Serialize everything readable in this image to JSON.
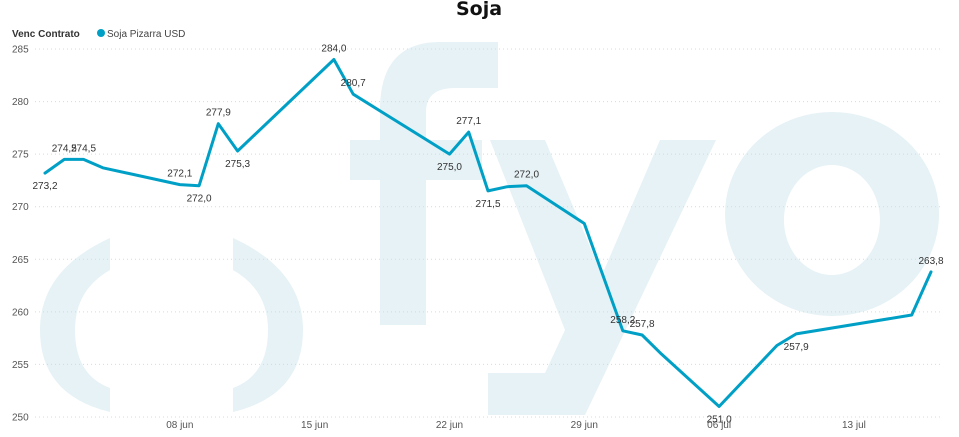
{
  "colors": {
    "series": "#00a0c6",
    "watermark": "#e6f2f6"
  },
  "legend": {
    "title": "Venc Contrato",
    "series_label": "Soja Pizarra USD"
  },
  "chart_data": {
    "type": "line",
    "title": "Soja",
    "xlabel": "",
    "ylabel": "",
    "ylim": [
      250,
      285
    ],
    "y_ticks": [
      250,
      255,
      260,
      265,
      270,
      275,
      280,
      285
    ],
    "x_range": [
      "2023-06-01",
      "2023-07-17"
    ],
    "x_ticks": [
      {
        "date": "2023-06-08",
        "label": "08 jun"
      },
      {
        "date": "2023-06-15",
        "label": "15 jun"
      },
      {
        "date": "2023-06-22",
        "label": "22 jun"
      },
      {
        "date": "2023-06-29",
        "label": "29 jun"
      },
      {
        "date": "2023-07-06",
        "label": "06 jul"
      },
      {
        "date": "2023-07-13",
        "label": "13 jul"
      }
    ],
    "grid": true,
    "legend_position": "top-left",
    "series": [
      {
        "name": "Soja Pizarra USD",
        "points": [
          {
            "x": "2023-06-01",
            "y": 273.2,
            "label": "273,2"
          },
          {
            "x": "2023-06-02",
            "y": 274.5,
            "label": "274,5"
          },
          {
            "x": "2023-06-03",
            "y": 274.5,
            "label": "274,5"
          },
          {
            "x": "2023-06-04",
            "y": 273.7
          },
          {
            "x": "2023-06-08",
            "y": 272.1,
            "label": "272,1"
          },
          {
            "x": "2023-06-09",
            "y": 272.0,
            "label": "272,0"
          },
          {
            "x": "2023-06-10",
            "y": 277.9,
            "label": "277,9"
          },
          {
            "x": "2023-06-11",
            "y": 275.3,
            "label": "275,3"
          },
          {
            "x": "2023-06-16",
            "y": 284.0,
            "label": "284,0"
          },
          {
            "x": "2023-06-17",
            "y": 280.7,
            "label": "280,7"
          },
          {
            "x": "2023-06-22",
            "y": 275.0,
            "label": "275,0"
          },
          {
            "x": "2023-06-23",
            "y": 277.1,
            "label": "277,1"
          },
          {
            "x": "2023-06-24",
            "y": 271.5,
            "label": "271,5"
          },
          {
            "x": "2023-06-25",
            "y": 271.9
          },
          {
            "x": "2023-06-26",
            "y": 272.0,
            "label": "272,0"
          },
          {
            "x": "2023-06-29",
            "y": 268.4
          },
          {
            "x": "2023-07-01",
            "y": 258.2,
            "label": "258,2"
          },
          {
            "x": "2023-07-02",
            "y": 257.8,
            "label": "257,8"
          },
          {
            "x": "2023-07-03",
            "y": 256.0
          },
          {
            "x": "2023-07-06",
            "y": 251.0,
            "label": "251,0"
          },
          {
            "x": "2023-07-09",
            "y": 256.8
          },
          {
            "x": "2023-07-10",
            "y": 257.9,
            "label": "257,9"
          },
          {
            "x": "2023-07-16",
            "y": 259.7
          },
          {
            "x": "2023-07-17",
            "y": 263.8,
            "label": "263,8"
          }
        ]
      }
    ]
  }
}
